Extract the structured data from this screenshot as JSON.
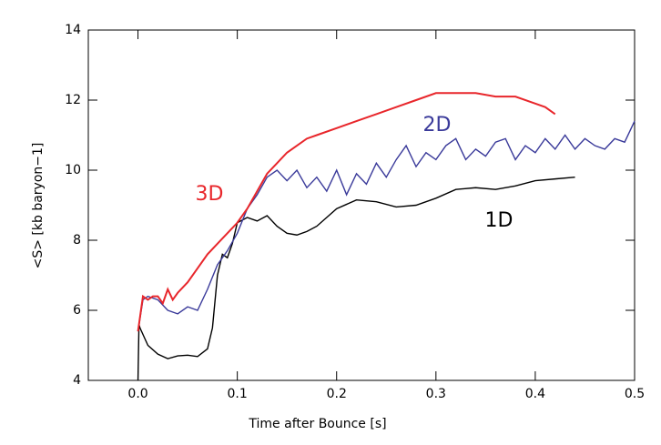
{
  "chart_data": {
    "type": "line",
    "xlabel": "Time after Bounce [s]",
    "ylabel": "<S> [kb baryon−1]",
    "xlim": [
      -0.05,
      0.5
    ],
    "ylim": [
      4,
      14
    ],
    "xticks": [
      {
        "value": 0,
        "label": "0.0"
      },
      0.1,
      0.2,
      0.3,
      0.4,
      0.5
    ],
    "yticks": [
      4,
      6,
      8,
      10,
      12,
      14
    ],
    "grid": false,
    "series": [
      {
        "name": "1D",
        "color": "#000000",
        "x": [
          0.0,
          0.001,
          0.002,
          0.01,
          0.02,
          0.03,
          0.04,
          0.05,
          0.06,
          0.07,
          0.075,
          0.08,
          0.085,
          0.09,
          0.095,
          0.1,
          0.11,
          0.12,
          0.13,
          0.14,
          0.15,
          0.16,
          0.17,
          0.18,
          0.2,
          0.22,
          0.24,
          0.26,
          0.28,
          0.3,
          0.32,
          0.34,
          0.36,
          0.38,
          0.4,
          0.42,
          0.44
        ],
        "values": [
          4,
          5.6,
          5.5,
          5.0,
          4.75,
          4.62,
          4.7,
          4.72,
          4.68,
          4.9,
          5.5,
          7.0,
          7.6,
          7.5,
          7.9,
          8.5,
          8.65,
          8.55,
          8.7,
          8.4,
          8.2,
          8.15,
          8.25,
          8.4,
          8.9,
          9.15,
          9.1,
          8.95,
          9.0,
          9.2,
          9.45,
          9.5,
          9.45,
          9.55,
          9.7,
          9.75,
          9.8
        ]
      },
      {
        "name": "2D",
        "color": "#3a3a9a",
        "x": [
          0.0,
          0.005,
          0.01,
          0.02,
          0.03,
          0.04,
          0.05,
          0.06,
          0.07,
          0.08,
          0.09,
          0.1,
          0.11,
          0.12,
          0.13,
          0.14,
          0.15,
          0.16,
          0.17,
          0.18,
          0.19,
          0.2,
          0.21,
          0.22,
          0.23,
          0.24,
          0.25,
          0.26,
          0.27,
          0.28,
          0.29,
          0.3,
          0.31,
          0.32,
          0.33,
          0.34,
          0.35,
          0.36,
          0.37,
          0.38,
          0.39,
          0.4,
          0.41,
          0.42,
          0.43,
          0.44,
          0.45,
          0.46,
          0.47,
          0.48,
          0.49,
          0.5
        ],
        "values": [
          5.4,
          6.3,
          6.4,
          6.3,
          6.0,
          5.9,
          6.1,
          6.0,
          6.6,
          7.3,
          7.7,
          8.2,
          8.9,
          9.3,
          9.8,
          10.0,
          9.7,
          10.0,
          9.5,
          9.8,
          9.4,
          10.0,
          9.3,
          9.9,
          9.6,
          10.2,
          9.8,
          10.3,
          10.7,
          10.1,
          10.5,
          10.3,
          10.7,
          10.9,
          10.3,
          10.6,
          10.4,
          10.8,
          10.9,
          10.3,
          10.7,
          10.5,
          10.9,
          10.6,
          11.0,
          10.6,
          10.9,
          10.7,
          10.6,
          10.9,
          10.8,
          11.4
        ]
      },
      {
        "name": "3D",
        "color": "#e8262b",
        "x": [
          0.0,
          0.005,
          0.01,
          0.015,
          0.02,
          0.025,
          0.03,
          0.035,
          0.04,
          0.05,
          0.06,
          0.07,
          0.08,
          0.09,
          0.1,
          0.11,
          0.12,
          0.13,
          0.14,
          0.15,
          0.16,
          0.17,
          0.18,
          0.2,
          0.22,
          0.24,
          0.26,
          0.28,
          0.3,
          0.32,
          0.34,
          0.36,
          0.38,
          0.4,
          0.41,
          0.42
        ],
        "values": [
          5.4,
          6.4,
          6.3,
          6.4,
          6.4,
          6.2,
          6.6,
          6.3,
          6.5,
          6.8,
          7.2,
          7.6,
          7.9,
          8.2,
          8.5,
          8.9,
          9.4,
          9.9,
          10.2,
          10.5,
          10.7,
          10.9,
          11.0,
          11.2,
          11.4,
          11.6,
          11.8,
          12.0,
          12.2,
          12.2,
          12.2,
          12.1,
          12.1,
          11.9,
          11.8,
          11.6
        ]
      }
    ]
  }
}
